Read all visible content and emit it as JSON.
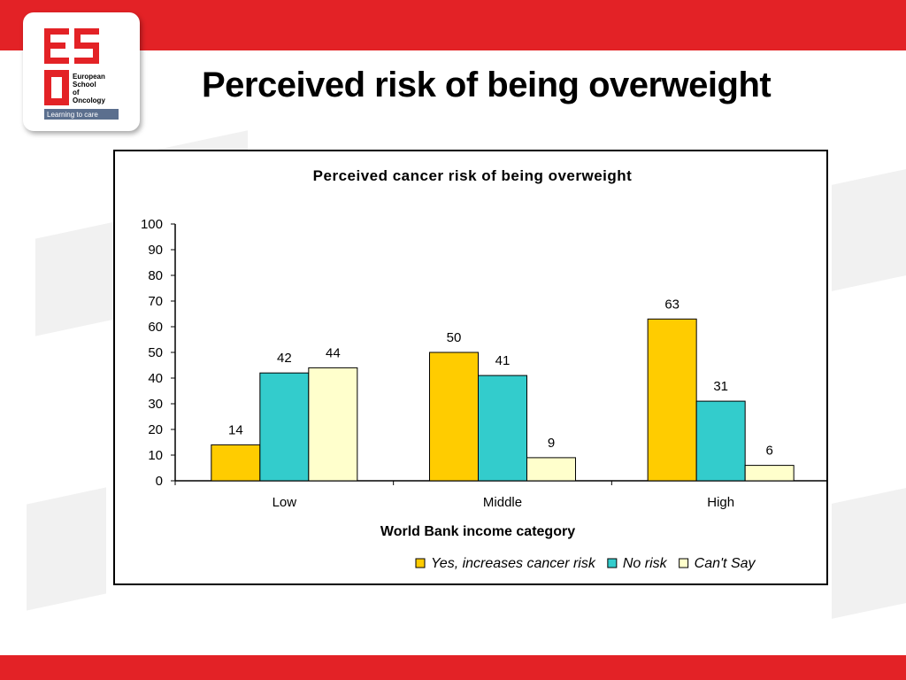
{
  "slide": {
    "title": "Perceived risk of being overweight"
  },
  "logo": {
    "name_lines": [
      "European",
      "School",
      "of",
      "Oncology"
    ],
    "tagline": "Learning to care"
  },
  "colors": {
    "brand_red": "#e32226",
    "series_yes": "#ffcc00",
    "series_no": "#33cccc",
    "series_cant": "#ffffcc"
  },
  "chart_data": {
    "type": "bar",
    "title": "Perceived cancer risk of being overweight",
    "xlabel": "World Bank income category",
    "ylabel": "",
    "categories": [
      "Low",
      "Middle",
      "High"
    ],
    "series": [
      {
        "name": "Yes, increases cancer risk",
        "values": [
          14,
          50,
          63
        ],
        "color": "#ffcc00"
      },
      {
        "name": "No risk",
        "values": [
          42,
          41,
          31
        ],
        "color": "#33cccc"
      },
      {
        "name": "Can't Say",
        "values": [
          44,
          9,
          6
        ],
        "color": "#ffffcc"
      }
    ],
    "ylim": [
      0,
      100
    ],
    "yticks": [
      0,
      10,
      20,
      30,
      40,
      50,
      60,
      70,
      80,
      90,
      100
    ],
    "grid": false,
    "legend_position": "bottom-right"
  }
}
